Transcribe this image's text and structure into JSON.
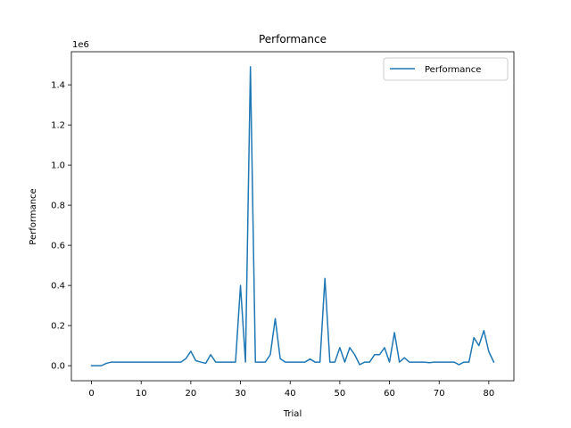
{
  "chart_data": {
    "type": "line",
    "title": "Performance",
    "xlabel": "Trial",
    "ylabel": "Performance",
    "offset_text": "1e6",
    "legend": {
      "entries": [
        "Performance"
      ],
      "placement": "top-right"
    },
    "grid": false,
    "xlim": [
      -4.05,
      85.05
    ],
    "ylim": [
      -0.075,
      1.565
    ],
    "xticks": [
      0,
      10,
      20,
      30,
      40,
      50,
      60,
      70,
      80
    ],
    "xtick_labels": [
      "0",
      "10",
      "20",
      "30",
      "40",
      "50",
      "60",
      "70",
      "80"
    ],
    "yticks": [
      0.0,
      0.2,
      0.4,
      0.6,
      0.8,
      1.0,
      1.2,
      1.4
    ],
    "ytick_labels": [
      "0.0",
      "0.2",
      "0.4",
      "0.6",
      "0.8",
      "1.0",
      "1.2",
      "1.4"
    ],
    "series": [
      {
        "name": "Performance",
        "color": "#1f77b4",
        "x": [
          0,
          1,
          2,
          3,
          4,
          5,
          6,
          7,
          8,
          9,
          10,
          11,
          12,
          13,
          14,
          15,
          16,
          17,
          18,
          19,
          20,
          21,
          22,
          23,
          24,
          25,
          26,
          27,
          28,
          29,
          30,
          31,
          32,
          33,
          34,
          35,
          36,
          37,
          38,
          39,
          40,
          41,
          42,
          43,
          44,
          45,
          46,
          47,
          48,
          49,
          50,
          51,
          52,
          53,
          54,
          55,
          56,
          57,
          58,
          59,
          60,
          61,
          62,
          63,
          64,
          65,
          66,
          67,
          68,
          69,
          70,
          71,
          72,
          73,
          74,
          75,
          76,
          77,
          78,
          79,
          80,
          81
        ],
        "values": [
          0.0,
          0.0,
          0.0,
          0.012,
          0.018,
          0.018,
          0.018,
          0.018,
          0.018,
          0.018,
          0.018,
          0.018,
          0.018,
          0.018,
          0.018,
          0.018,
          0.018,
          0.018,
          0.018,
          0.035,
          0.072,
          0.025,
          0.018,
          0.012,
          0.055,
          0.018,
          0.018,
          0.018,
          0.018,
          0.018,
          0.4,
          0.018,
          1.49,
          0.018,
          0.018,
          0.018,
          0.055,
          0.235,
          0.035,
          0.018,
          0.018,
          0.018,
          0.018,
          0.018,
          0.033,
          0.018,
          0.018,
          0.435,
          0.018,
          0.018,
          0.09,
          0.018,
          0.09,
          0.055,
          0.005,
          0.018,
          0.018,
          0.055,
          0.055,
          0.09,
          0.018,
          0.165,
          0.018,
          0.04,
          0.018,
          0.018,
          0.018,
          0.018,
          0.015,
          0.018,
          0.018,
          0.018,
          0.018,
          0.018,
          0.005,
          0.018,
          0.018,
          0.14,
          0.1,
          0.175,
          0.07,
          0.018
        ]
      }
    ]
  }
}
